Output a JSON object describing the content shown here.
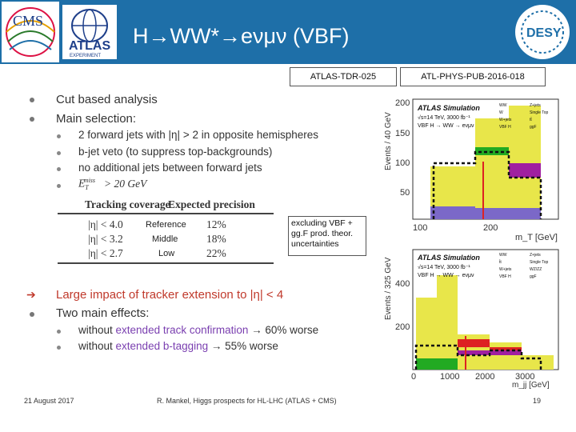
{
  "header": {
    "title": "H→WW*→eνμν (VBF)",
    "logos": {
      "cms": "CMS",
      "atlas": "ATLAS",
      "atlas_sub": "EXPERIMENT",
      "desy": "DESY"
    }
  },
  "refs": {
    "left": "ATLAS-TDR-025",
    "right": "ATL-PHYS-PUB-2016-018"
  },
  "bullets": {
    "b1": "Cut based analysis",
    "b2": "Main selection:",
    "sub1": "2 forward jets with |η| > 2 in opposite hemispheres",
    "sub2": "b-jet veto (to suppress top-backgrounds)",
    "sub3": "no additional jets between forward jets",
    "sub4": "> 20 GeV",
    "b3": "Large impact of tracker extension to |η| < 4",
    "b4": "Two main effects:",
    "sub5a": "without ",
    "sub5b": "extended track confirmation",
    "sub5c": " → 60% worse",
    "sub6a": "without ",
    "sub6b": "extended b-tagging",
    "sub6c": " → 55% worse"
  },
  "table": {
    "headers": [
      "Tracking coverage",
      "Expected precision"
    ],
    "rows": [
      {
        "coverage": "|η| < 4.0",
        "label": "Reference",
        "precision": "12%"
      },
      {
        "coverage": "|η| < 3.2",
        "label": "Middle",
        "precision": "18%"
      },
      {
        "coverage": "|η| < 2.7",
        "label": "Low",
        "precision": "22%"
      }
    ]
  },
  "note": "excluding VBF + gg.F prod. theor. uncertainties",
  "plots": {
    "top": {
      "title": "ATLAS Simulation",
      "line1": "√s=14 TeV, 3000 fb⁻¹",
      "line2": "VBF H → WW → eνμν",
      "ylabel": "Events / 40 GeV",
      "xlabel": "m_T [GeV]",
      "yticks": [
        "200",
        "150",
        "100",
        "50"
      ],
      "xticks": [
        "100",
        "200"
      ],
      "legend": [
        "WW",
        "Z+jets",
        "W",
        "Single Top",
        "W+jets",
        "tt̄",
        "VBF H",
        "ggF"
      ]
    },
    "bottom": {
      "title": "ATLAS Simulation",
      "line1": "√s=14 TeV, 3000 fb⁻¹",
      "line2": "VBF H → WW → eνμν",
      "ylabel": "Events / 325 GeV",
      "xlabel": "m_jj [GeV]",
      "yticks": [
        "400",
        "200"
      ],
      "xticks": [
        "0",
        "1000",
        "2000",
        "3000"
      ],
      "legend": [
        "WW",
        "Z+jets",
        "t̄t",
        "Single Top",
        "W+jets",
        "WZ/ZZ",
        "VBF H",
        "ggF"
      ]
    }
  },
  "footer": {
    "date": "21 August 2017",
    "center": "R. Mankel, Higgs prospects for HL-LHC (ATLAS + CMS)",
    "page": "19"
  }
}
